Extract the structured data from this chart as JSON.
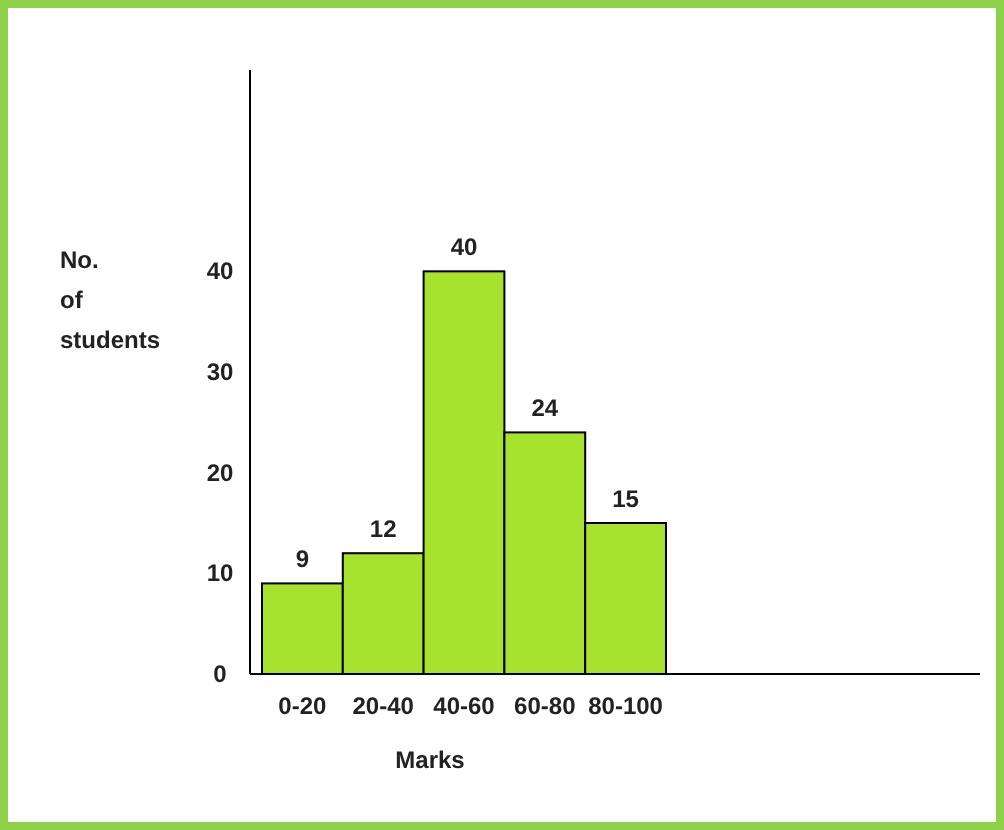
{
  "chart_data": {
    "type": "bar",
    "xlabel": "Marks",
    "ylabel": "No. of students",
    "categories": [
      "0-20",
      "20-40",
      "40-60",
      "60-80",
      "80-100"
    ],
    "values": [
      9,
      12,
      40,
      24,
      15
    ],
    "color": "#a6e22e",
    "ylim": [
      0,
      60
    ],
    "yticks": [
      0,
      10,
      20,
      30,
      40
    ],
    "grid": false,
    "data_labels": true
  }
}
